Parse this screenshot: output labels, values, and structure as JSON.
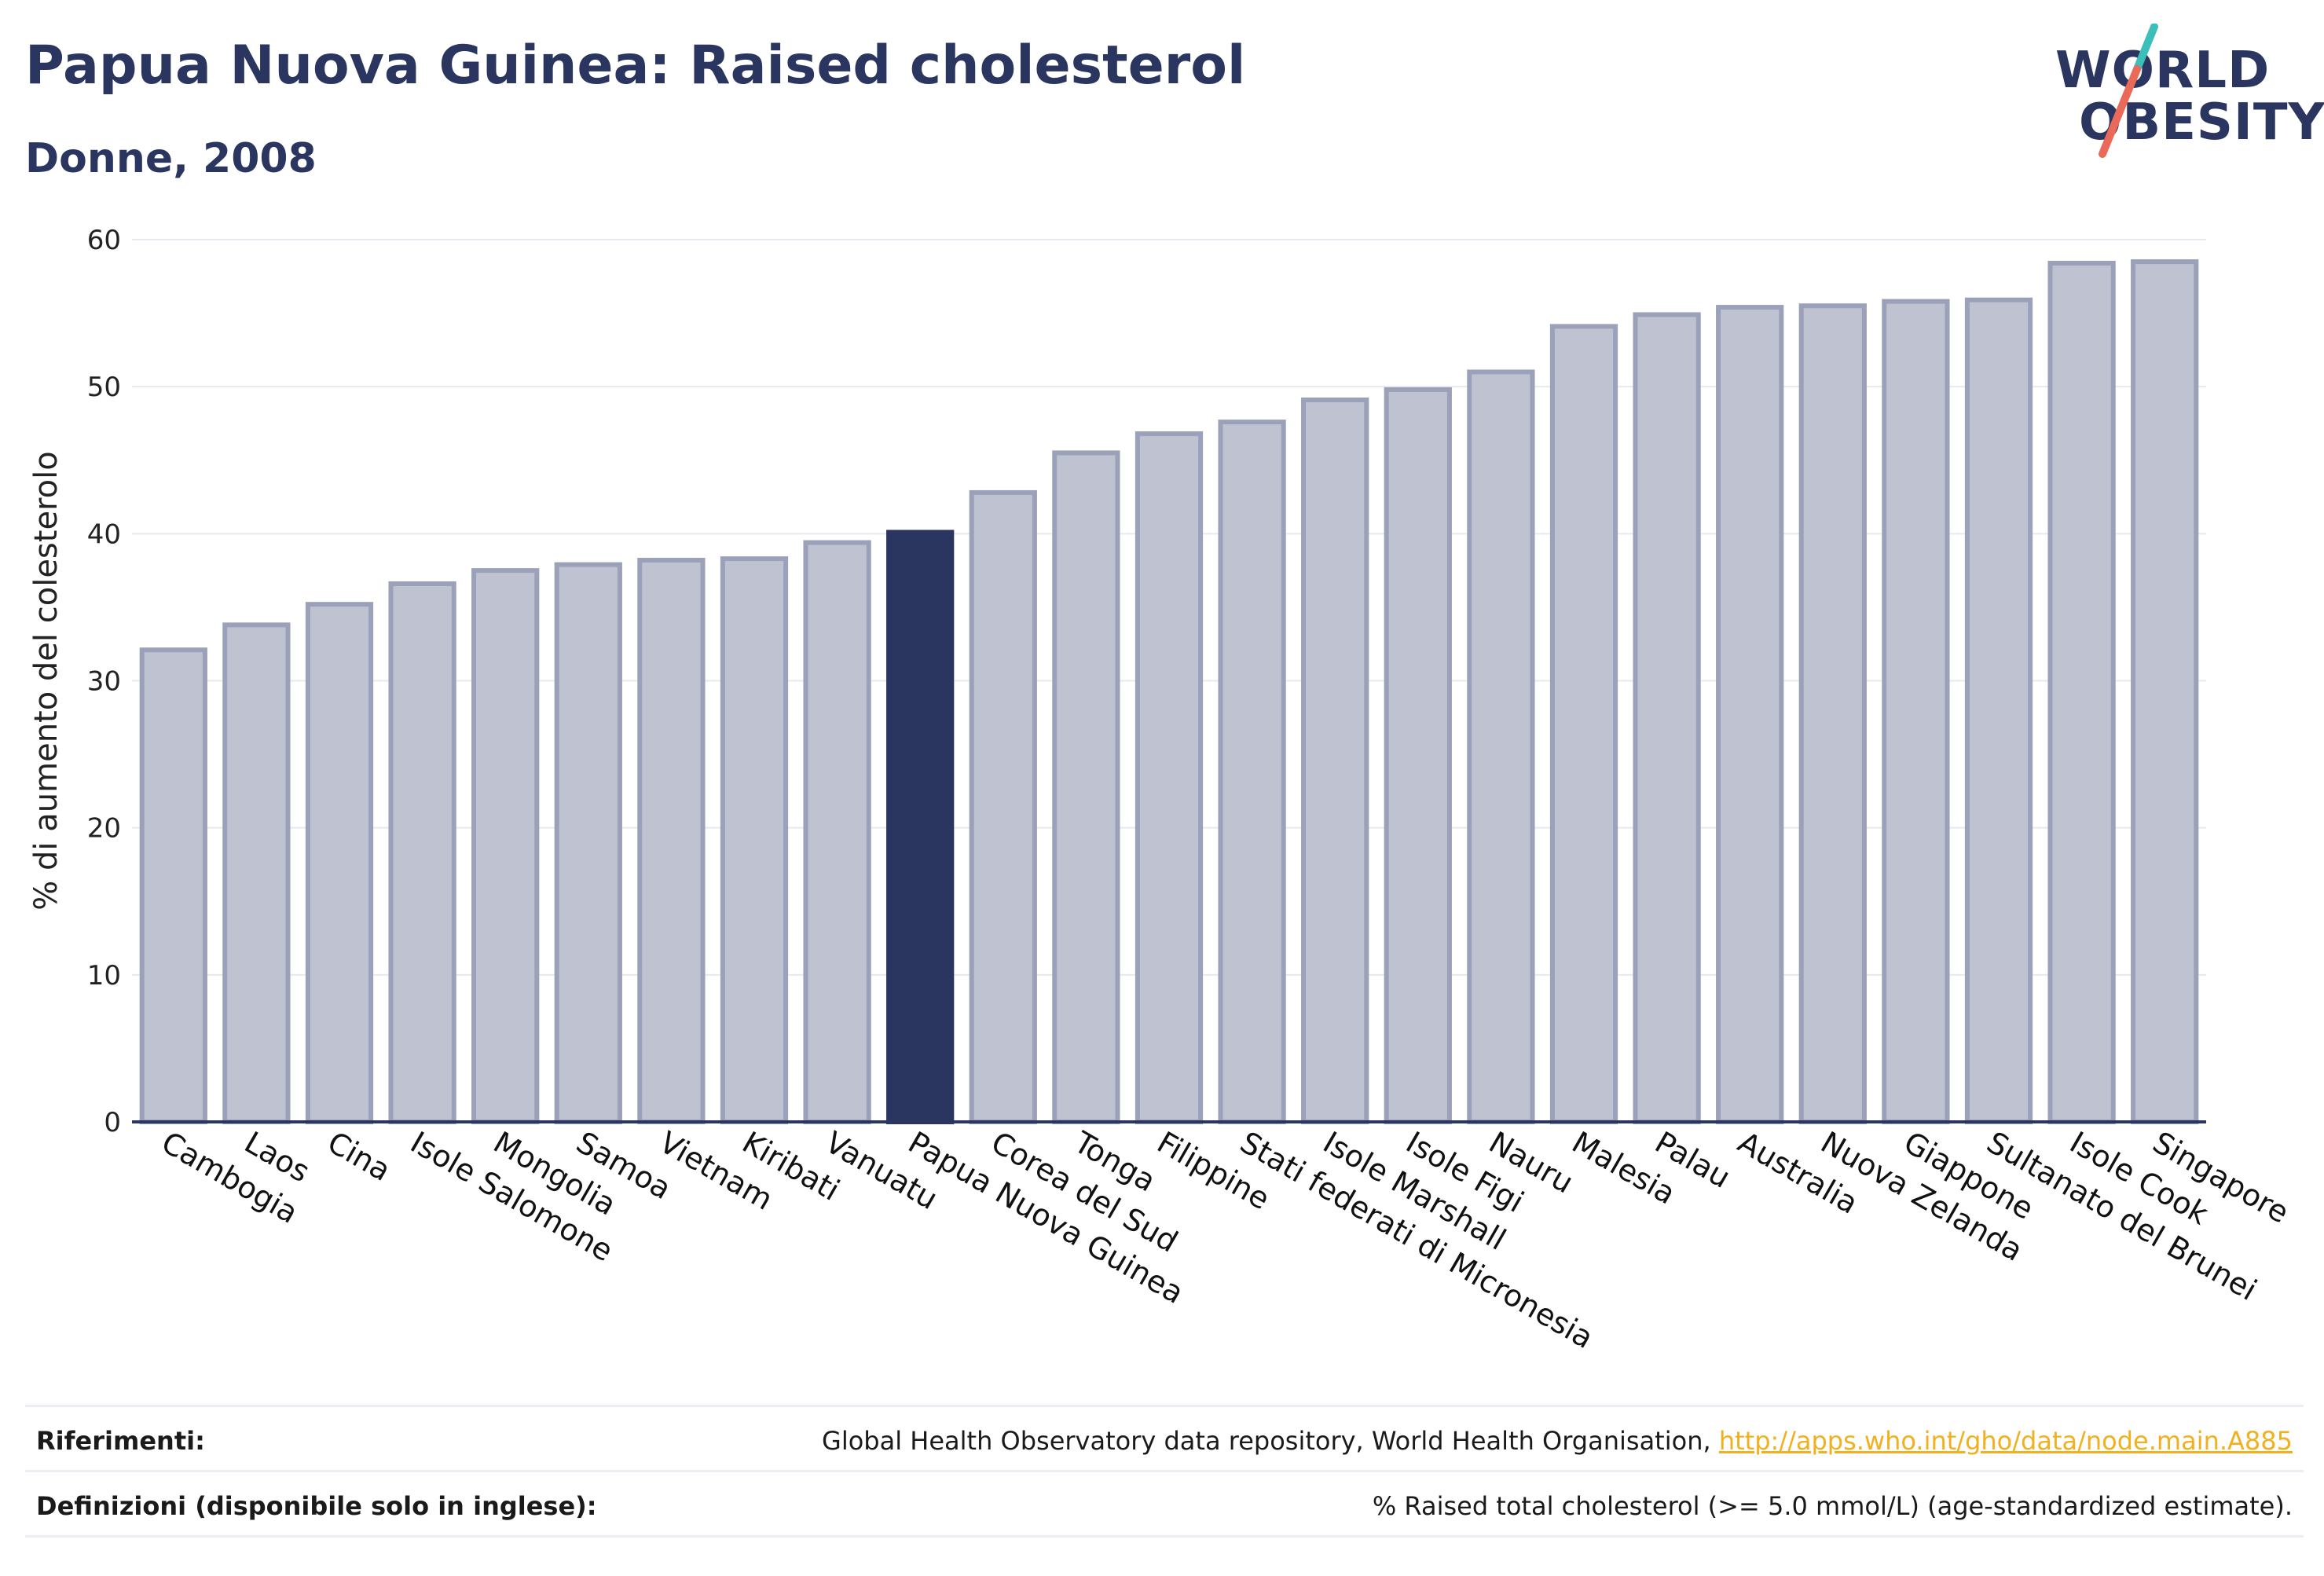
{
  "header": {
    "title": "Papua Nuova Guinea: Raised cholesterol",
    "subtitle": "Donne, 2008"
  },
  "logo": {
    "line1": "WORLD",
    "line2": "OBESITY"
  },
  "colors": {
    "highlight": "#2a3560",
    "bar_fill": "#bfc2d0",
    "bar_stroke": "#9aa1b8",
    "grid": "#e8e9ef",
    "logo_teal": "#3bbfb8",
    "logo_coral": "#ea6a5a"
  },
  "chart_data": {
    "type": "bar",
    "ylabel": "% di aumento del colesterolo",
    "ylim": [
      0,
      60
    ],
    "yticks": [
      0,
      10,
      20,
      30,
      40,
      50,
      60
    ],
    "grid": true,
    "highlight": "Papua Nuova Guinea",
    "categories": [
      "Cambogia",
      "Laos",
      "Cina",
      "Isole Salomone",
      "Mongolia",
      "Samoa",
      "Vietnam",
      "Kiribati",
      "Vanuatu",
      "Papua Nuova Guinea",
      "Corea del Sud",
      "Tonga",
      "Filippine",
      "Stati federati di Micronesia",
      "Isole Marshall",
      "Isole Figi",
      "Nauru",
      "Malesia",
      "Palau",
      "Australia",
      "Nuova Zelanda",
      "Giappone",
      "Sultanato del Brunei",
      "Isole Cook",
      "Singapore"
    ],
    "values": [
      32.1,
      33.8,
      35.2,
      36.6,
      37.5,
      37.9,
      38.2,
      38.3,
      39.4,
      40.1,
      42.8,
      45.5,
      46.8,
      47.6,
      49.1,
      49.8,
      51.0,
      54.1,
      54.9,
      55.4,
      55.5,
      55.8,
      55.9,
      58.4,
      58.5
    ]
  },
  "references": [
    {
      "label": "Riferimenti:",
      "text": "Global Health Observatory data repository, World Health Organisation, ",
      "link": "http://apps.who.int/gho/data/node.main.A885"
    },
    {
      "label": "Definizioni (disponibile solo in inglese):",
      "text": "% Raised total cholesterol (>= 5.0 mmol/L) (age-standardized estimate)."
    }
  ]
}
